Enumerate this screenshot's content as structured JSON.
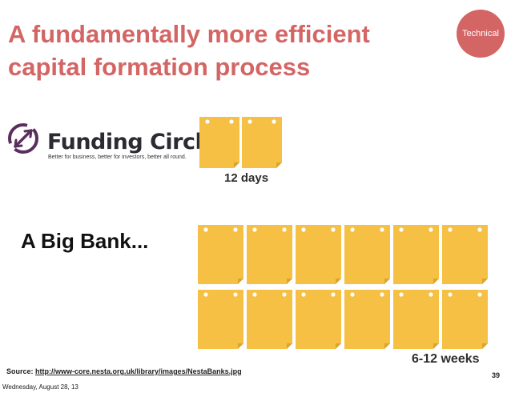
{
  "slide": {
    "title_line1": "A fundamentally more efficient",
    "title_line2": "capital formation process",
    "tag": "Technical",
    "accent_color": "#d46565",
    "calendar_color": "#f5c043",
    "page_number": "39"
  },
  "funding_circle": {
    "logo_icon": "circular-arrows-icon",
    "brand_name": "Funding Circle",
    "tagline": "Better for business, better for investors, better all round.",
    "duration_label": "12 days",
    "calendar_pages": 2
  },
  "big_bank": {
    "label": "A Big Bank...",
    "duration_label": "6-12 weeks",
    "calendar_pages": 12
  },
  "source": {
    "prefix": "Source:",
    "url_text": "http://www-core.nesta.org.uk/library/images/NestaBanks.jpg"
  },
  "footer": {
    "date": "Wednesday, August 28, 13"
  }
}
